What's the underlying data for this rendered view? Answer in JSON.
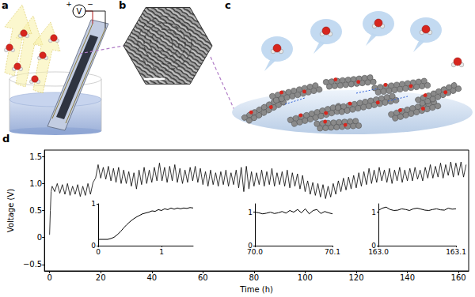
{
  "panels": {
    "a": {
      "label": "a",
      "meter": "V",
      "plus": "+",
      "minus": "−"
    },
    "b": {
      "label": "b"
    },
    "c": {
      "label": "c"
    },
    "d": {
      "label": "d"
    }
  },
  "chart_data": [
    {
      "type": "line",
      "x_label": "Time (h)",
      "y_label": "Voltage (V)",
      "color": "#000000",
      "grid": false,
      "xlim": [
        -2,
        164
      ],
      "xticks": [
        0,
        20,
        40,
        60,
        80,
        100,
        120,
        140,
        160
      ],
      "ylim": [
        -0.62,
        1.62
      ],
      "yticks": [
        {
          "value": -0.5,
          "label": "−0.5"
        },
        0,
        0.5,
        {
          "value": 1,
          "label": "1.0"
        },
        1.5
      ],
      "x": [
        0,
        0.3,
        0.6,
        1,
        2,
        3,
        4,
        5,
        6,
        7,
        8,
        9,
        10,
        11,
        12,
        13,
        14,
        15,
        16,
        17,
        18,
        19,
        20,
        21,
        22,
        23,
        24,
        25,
        26,
        27,
        28,
        29,
        30,
        31,
        32,
        33,
        34,
        35,
        36,
        37,
        38,
        39,
        40,
        41,
        42,
        43,
        44,
        45,
        46,
        47,
        48,
        49,
        50,
        51,
        52,
        53,
        54,
        55,
        56,
        57,
        58,
        59,
        60,
        61,
        62,
        63,
        64,
        65,
        66,
        67,
        68,
        69,
        70,
        71,
        72,
        73,
        74,
        75,
        76,
        77,
        78,
        79,
        80,
        81,
        82,
        83,
        84,
        85,
        86,
        87,
        88,
        89,
        90,
        91,
        92,
        93,
        94,
        95,
        96,
        97,
        98,
        99,
        100,
        101,
        102,
        103,
        104,
        105,
        106,
        107,
        108,
        109,
        110,
        111,
        112,
        113,
        114,
        115,
        116,
        117,
        118,
        119,
        120,
        121,
        122,
        123,
        124,
        125,
        126,
        127,
        128,
        129,
        130,
        131,
        132,
        133,
        134,
        135,
        136,
        137,
        138,
        139,
        140,
        141,
        142,
        143,
        144,
        145,
        146,
        147,
        148,
        149,
        150,
        151,
        152,
        153,
        154,
        155,
        156,
        157,
        158,
        159,
        160,
        161,
        162,
        163
      ],
      "values": [
        0.05,
        0.5,
        0.85,
        0.95,
        0.85,
        1.0,
        0.82,
        0.98,
        0.8,
        1.0,
        0.78,
        0.95,
        0.8,
        0.98,
        0.76,
        0.95,
        0.78,
        1.0,
        0.8,
        1.02,
        1.1,
        1.35,
        1.1,
        1.3,
        1.08,
        1.32,
        1.05,
        1.28,
        1.02,
        1.3,
        1.0,
        1.25,
        1.0,
        1.22,
        0.95,
        1.2,
        0.9,
        1.25,
        0.98,
        1.3,
        1.0,
        1.25,
        1.02,
        1.3,
        1.05,
        1.38,
        1.05,
        1.3,
        1.02,
        1.32,
        1.05,
        1.35,
        1.02,
        1.28,
        1.0,
        1.25,
        1.02,
        1.3,
        1.05,
        1.32,
        1.02,
        1.28,
        0.98,
        1.22,
        0.95,
        1.25,
        0.98,
        1.2,
        0.95,
        1.22,
        0.98,
        1.25,
        0.95,
        1.2,
        0.98,
        1.25,
        0.92,
        1.3,
        0.85,
        1.32,
        0.9,
        1.22,
        0.95,
        1.2,
        0.98,
        1.25,
        0.95,
        1.22,
        0.98,
        1.28,
        0.95,
        1.2,
        0.98,
        1.22,
        0.95,
        1.25,
        0.92,
        1.2,
        0.95,
        1.18,
        0.9,
        1.15,
        0.85,
        1.05,
        0.8,
        1.02,
        0.78,
        1.0,
        0.75,
        0.98,
        0.72,
        0.95,
        0.75,
        1.0,
        0.8,
        1.05,
        0.85,
        1.1,
        0.88,
        1.12,
        0.9,
        1.15,
        0.92,
        1.2,
        0.95,
        1.22,
        0.98,
        1.28,
        1.0,
        1.25,
        1.02,
        1.3,
        1.05,
        1.25,
        1.02,
        1.28,
        1.0,
        1.25,
        1.05,
        1.3,
        1.02,
        1.25,
        1.05,
        1.28,
        1.05,
        1.3,
        1.08,
        1.25,
        1.05,
        1.3,
        1.1,
        1.35,
        1.1,
        1.32,
        1.12,
        1.38,
        1.1,
        1.35,
        1.15,
        1.4,
        1.12,
        1.38,
        1.15,
        1.4,
        1.12,
        1.35
      ]
    },
    {
      "type": "line",
      "color": "#000000",
      "grid": false,
      "xlim": [
        0,
        1.5
      ],
      "xticks": [
        0,
        1
      ],
      "ylim": [
        0,
        1
      ],
      "yticks": [
        0,
        1
      ],
      "x": [
        0,
        0.05,
        0.1,
        0.15,
        0.2,
        0.25,
        0.3,
        0.35,
        0.4,
        0.45,
        0.5,
        0.55,
        0.6,
        0.65,
        0.7,
        0.75,
        0.8,
        0.85,
        0.9,
        0.95,
        1.0,
        1.05,
        1.1,
        1.15,
        1.2,
        1.25,
        1.3,
        1.35,
        1.4,
        1.45,
        1.5
      ],
      "values": [
        0.15,
        0.15,
        0.15,
        0.15,
        0.17,
        0.2,
        0.26,
        0.33,
        0.42,
        0.5,
        0.57,
        0.63,
        0.68,
        0.72,
        0.76,
        0.78,
        0.8,
        0.83,
        0.82,
        0.86,
        0.84,
        0.88,
        0.86,
        0.9,
        0.87,
        0.9,
        0.88,
        0.9,
        0.89,
        0.91,
        0.9
      ]
    },
    {
      "type": "line",
      "color": "#000000",
      "grid": false,
      "xlim": [
        70,
        70.1
      ],
      "xticks": [
        {
          "value": 70,
          "label": "70.0"
        },
        70.1
      ],
      "ylim": [
        0,
        1.25
      ],
      "yticks": [
        0,
        1
      ],
      "x": [
        70,
        70.005,
        70.01,
        70.015,
        70.02,
        70.025,
        70.03,
        70.035,
        70.04,
        70.045,
        70.05,
        70.055,
        70.06,
        70.065,
        70.07,
        70.075,
        70.08,
        70.085,
        70.09,
        70.095,
        70.1
      ],
      "values": [
        1.0,
        0.98,
        0.95,
        0.97,
        1.0,
        0.96,
        0.98,
        1.02,
        0.97,
        1.05,
        1.0,
        1.08,
        0.98,
        1.1,
        0.95,
        1.05,
        1.08,
        0.96,
        1.02,
        0.98,
        0.95
      ]
    },
    {
      "type": "line",
      "color": "#000000",
      "grid": false,
      "xlim": [
        163,
        163.1
      ],
      "xticks": [
        {
          "value": 163,
          "label": "163.0"
        },
        163.1
      ],
      "ylim": [
        0,
        1.25
      ],
      "yticks": [
        0,
        1
      ],
      "x": [
        163,
        163.005,
        163.01,
        163.015,
        163.02,
        163.025,
        163.03,
        163.035,
        163.04,
        163.045,
        163.05,
        163.055,
        163.06,
        163.065,
        163.07,
        163.075,
        163.08,
        163.085,
        163.09,
        163.095,
        163.1
      ],
      "values": [
        1.05,
        1.12,
        1.15,
        1.08,
        1.05,
        1.06,
        1.1,
        1.08,
        1.05,
        1.1,
        1.12,
        1.09,
        1.06,
        1.05,
        1.08,
        1.1,
        1.07,
        1.06,
        1.12,
        1.09,
        1.1
      ]
    }
  ]
}
